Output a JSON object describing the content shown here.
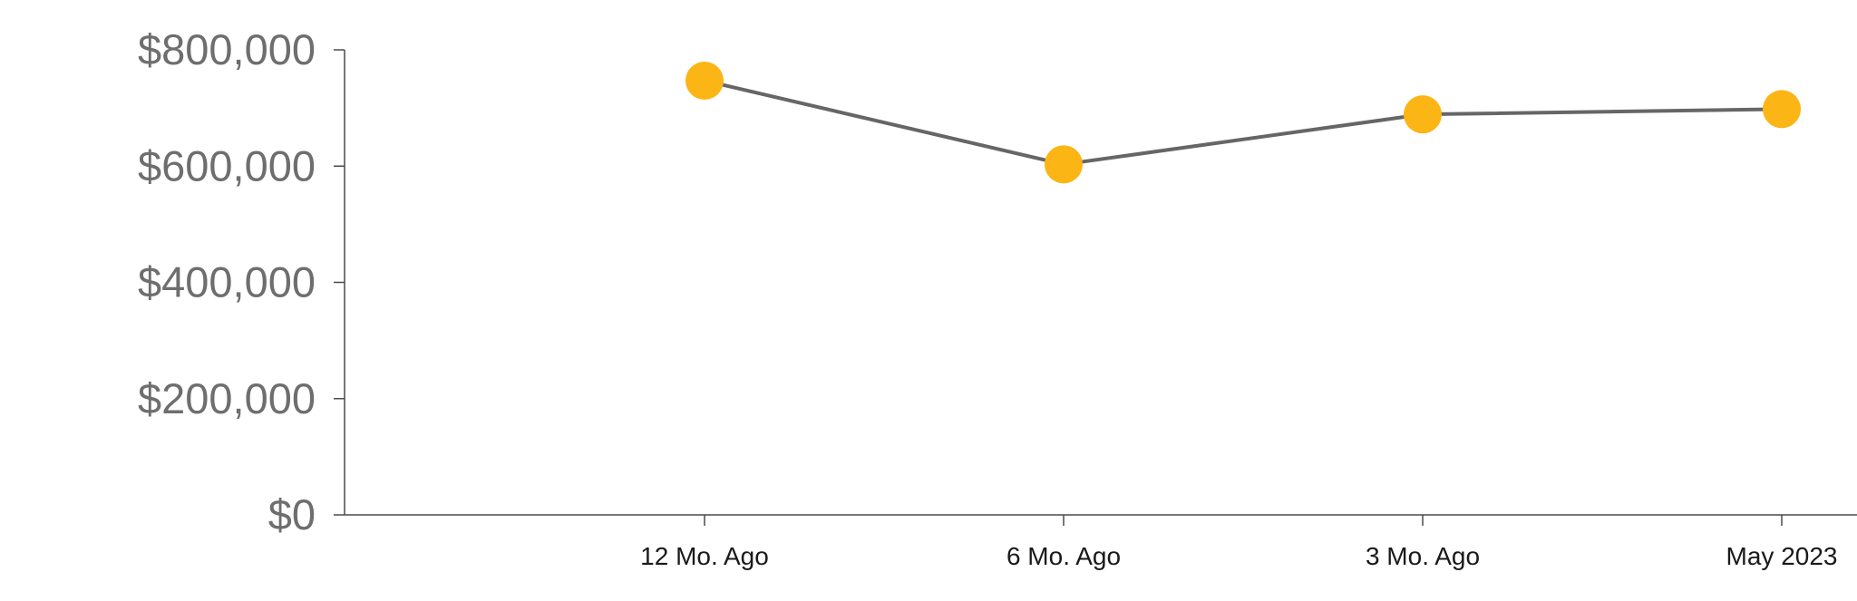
{
  "chart_data": {
    "type": "line",
    "title": "",
    "xlabel": "",
    "ylabel": "",
    "categories": [
      "12 Mo. Ago",
      "6 Mo. Ago",
      "3 Mo. Ago",
      "May 2023"
    ],
    "values": [
      747000,
      603000,
      689000,
      698000
    ],
    "ylim": [
      0,
      800000
    ],
    "y_ticks": [
      0,
      200000,
      400000,
      600000,
      800000
    ],
    "y_tick_labels": [
      "$0",
      "$200,000",
      "$400,000",
      "$600,000",
      "$800,000"
    ],
    "grid": false,
    "legend": "none",
    "colors": {
      "line": "#666666",
      "marker": "#fbb515",
      "axis": "#4a4a4a"
    }
  }
}
